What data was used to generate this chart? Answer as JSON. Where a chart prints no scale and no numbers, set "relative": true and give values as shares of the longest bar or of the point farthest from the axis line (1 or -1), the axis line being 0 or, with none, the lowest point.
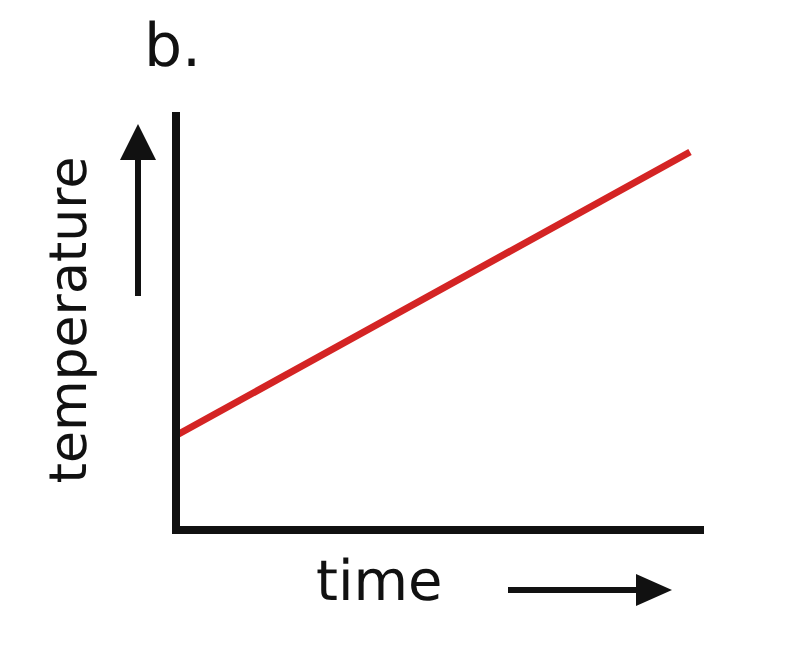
{
  "chart_data": {
    "type": "line",
    "title": "b.",
    "xlabel": "time",
    "ylabel": "temperature",
    "relative": true,
    "categories": [
      null,
      null
    ],
    "series": [
      {
        "color": "#d42424",
        "values": [
          0.25,
          1
        ]
      }
    ],
    "legend": false,
    "marker": "none"
  }
}
